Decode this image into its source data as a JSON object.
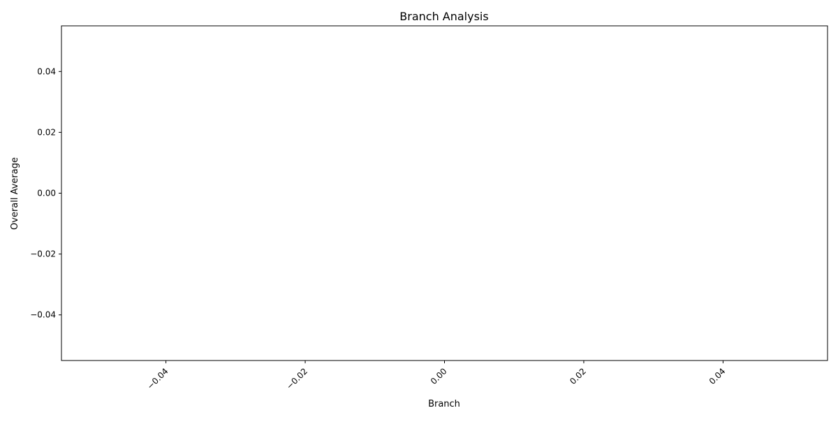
{
  "chart_data": {
    "type": "bar",
    "title": "Branch Analysis",
    "xlabel": "Branch",
    "ylabel": "Overall Average",
    "categories": [],
    "values": [],
    "xlim": [
      -0.055,
      0.055
    ],
    "ylim": [
      -0.055,
      0.055
    ],
    "x_ticks": [
      -0.04,
      -0.02,
      0.0,
      0.02,
      0.04
    ],
    "x_tick_labels": [
      "−0.04",
      "−0.02",
      "0.00",
      "0.02",
      "0.04"
    ],
    "x_tick_label_rotation": 45,
    "y_ticks": [
      -0.04,
      -0.02,
      0.0,
      0.02,
      0.04
    ],
    "y_tick_labels": [
      "−0.04",
      "−0.02",
      "0.00",
      "0.02",
      "0.04"
    ],
    "grid": false,
    "legend": "none",
    "colors": {
      "axes": "#000000",
      "background": "#ffffff",
      "text": "#000000"
    }
  }
}
